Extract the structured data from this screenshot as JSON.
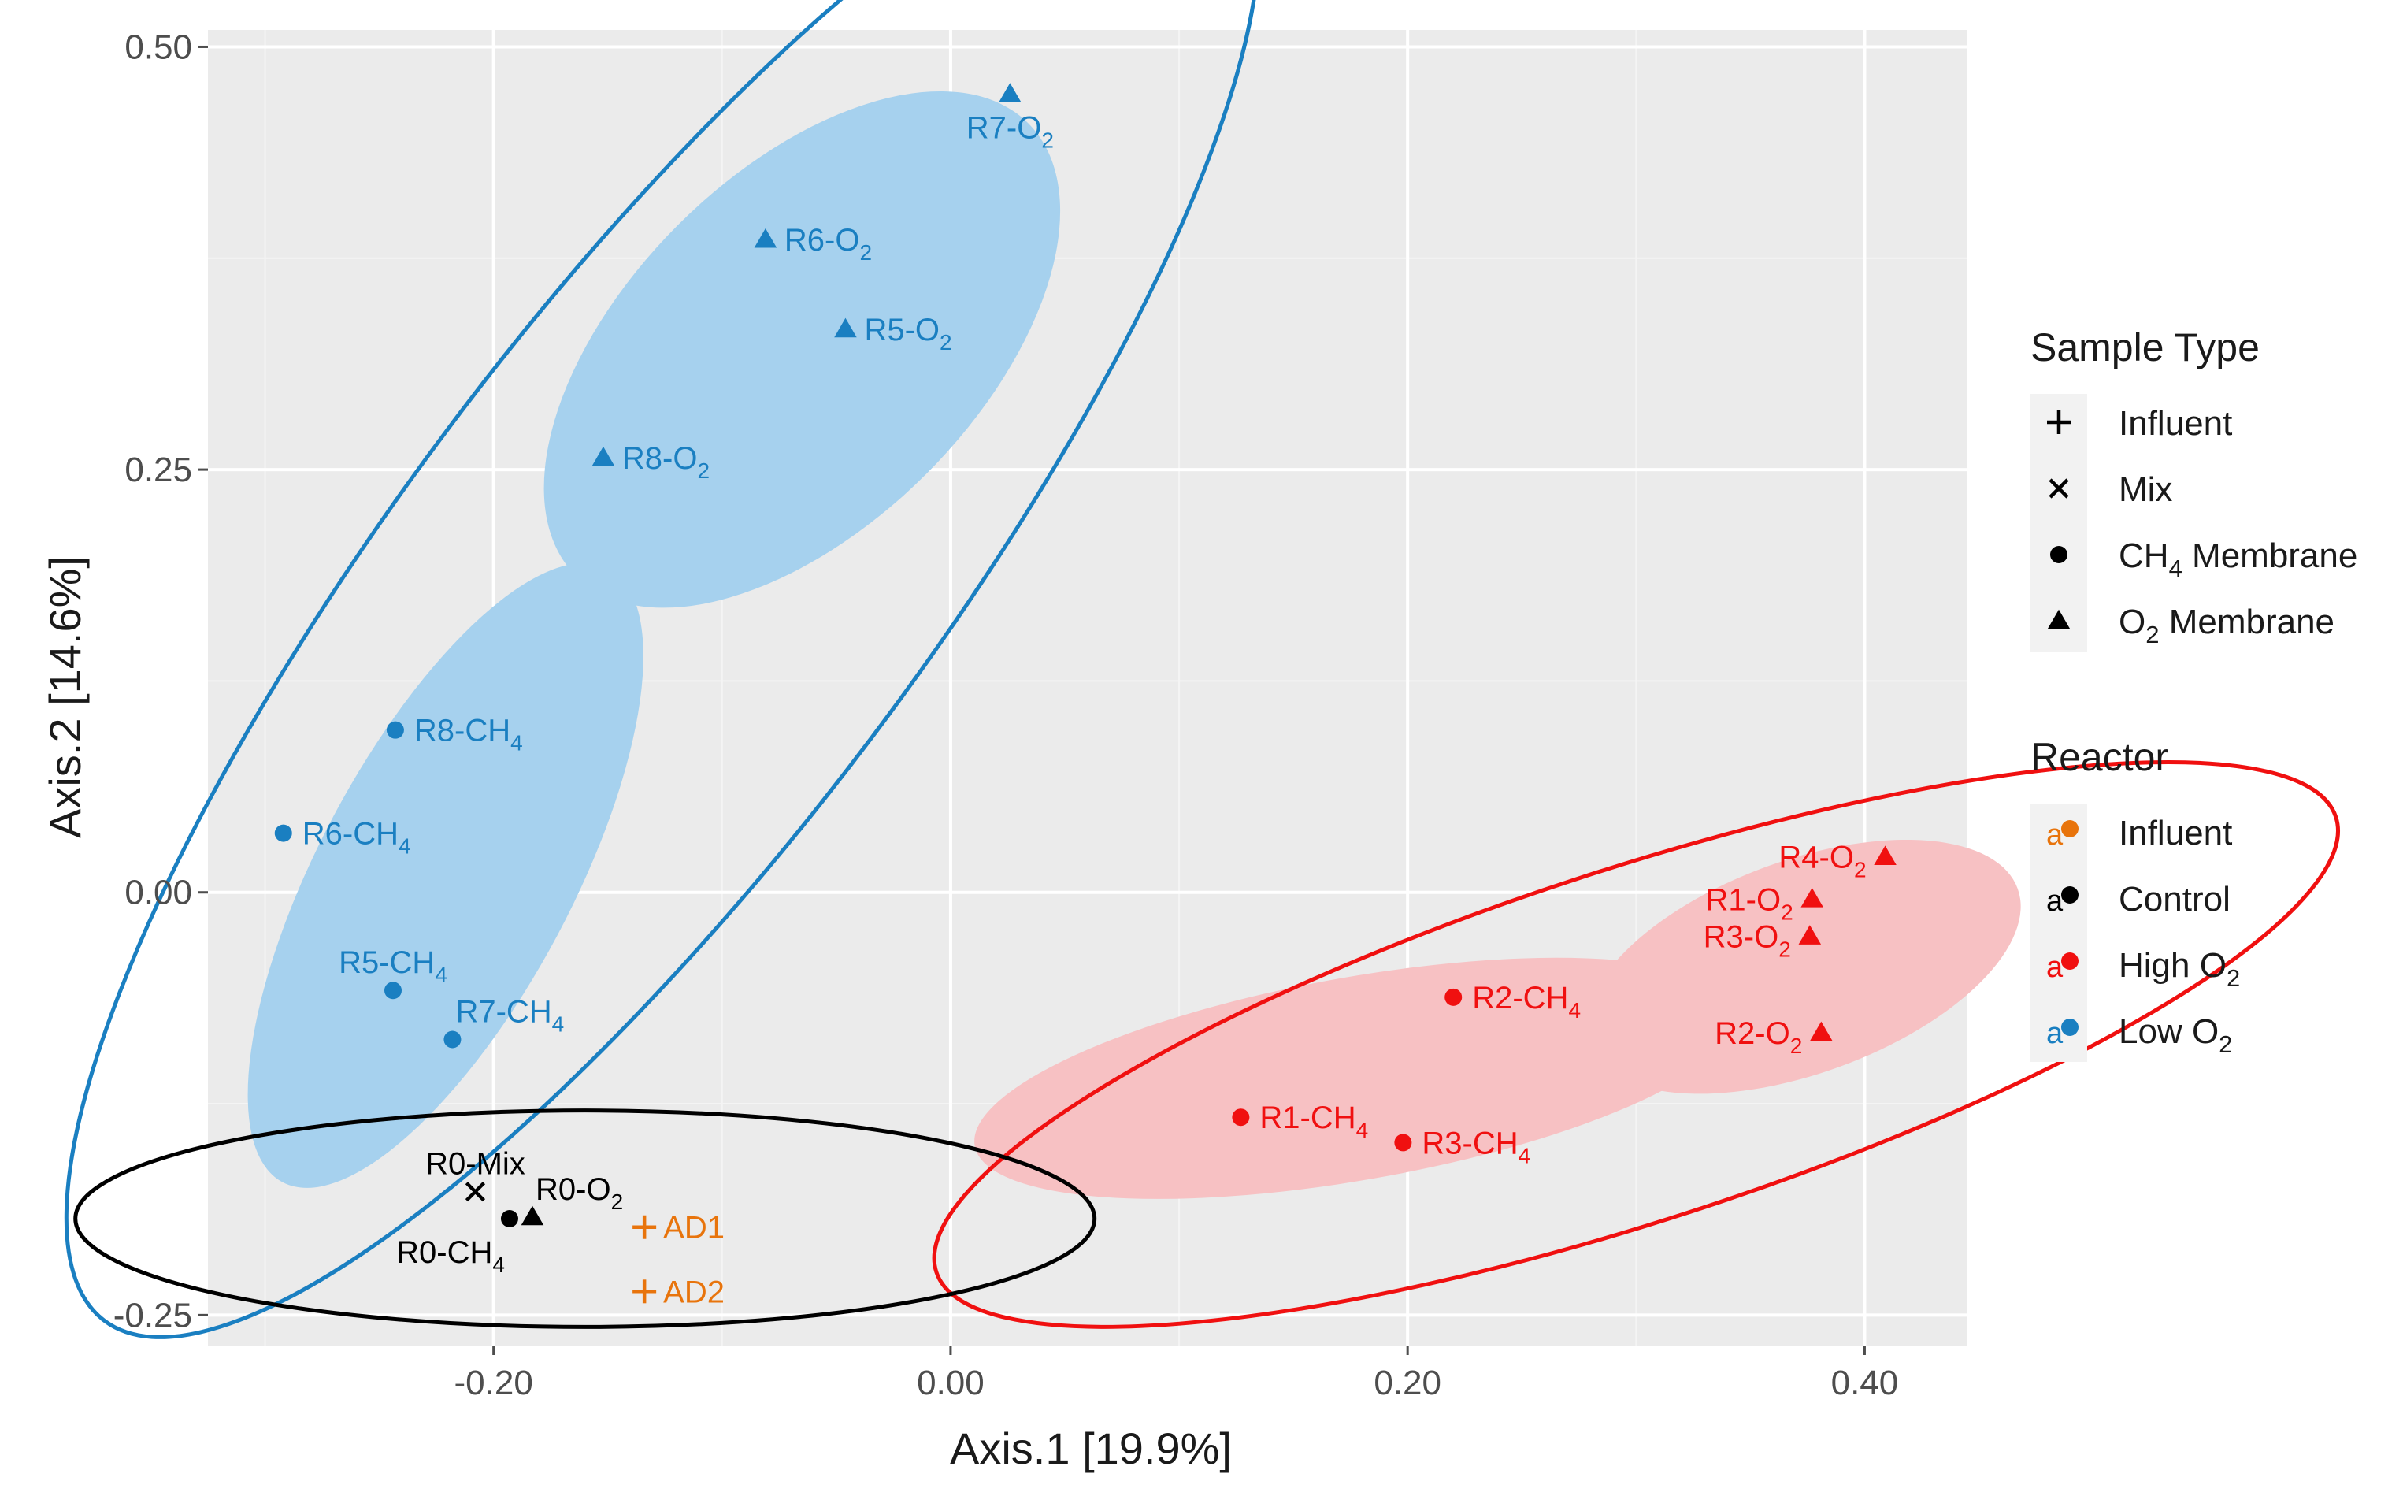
{
  "chart_data": {
    "type": "scatter",
    "title": "",
    "xlabel": "Axis.1  [19.9%]",
    "ylabel": "Axis.2  [14.6%]",
    "xlim": [
      -0.325,
      0.445
    ],
    "ylim": [
      -0.268,
      0.51
    ],
    "x_ticks": [
      -0.2,
      0.0,
      0.2,
      0.4
    ],
    "x_tick_labels": [
      "-0.20",
      "0.00",
      "0.20",
      "0.40"
    ],
    "y_ticks": [
      -0.25,
      0.0,
      0.25,
      0.5
    ],
    "y_tick_labels": [
      "-0.25",
      "0.00",
      "0.25",
      "0.50"
    ],
    "grid": true,
    "colors": {
      "influent": "#E8740C",
      "control": "#000000",
      "high_o2": "#F01010",
      "low_o2": "#1A7FC1",
      "low_o2_fill": "#A6D1EE",
      "high_o2_fill": "#F7C1C3",
      "panel": "#EBEBEB",
      "grid_major": "#FFFFFF",
      "grid_minor": "#F4F4F4",
      "text": "#1A1A1A",
      "tick": "#4D4D4D"
    },
    "points": [
      {
        "id": "R7-O2",
        "base": "R7-O",
        "sub": "2",
        "reactor": "low_o2",
        "shape": "triangle",
        "x": 0.026,
        "y": 0.472,
        "label_pos": "below"
      },
      {
        "id": "R6-O2",
        "base": "R6-O",
        "sub": "2",
        "reactor": "low_o2",
        "shape": "triangle",
        "x": -0.081,
        "y": 0.386,
        "label_pos": "right"
      },
      {
        "id": "R5-O2",
        "base": "R5-O",
        "sub": "2",
        "reactor": "low_o2",
        "shape": "triangle",
        "x": -0.046,
        "y": 0.333,
        "label_pos": "right"
      },
      {
        "id": "R8-O2",
        "base": "R8-O",
        "sub": "2",
        "reactor": "low_o2",
        "shape": "triangle",
        "x": -0.152,
        "y": 0.257,
        "label_pos": "right"
      },
      {
        "id": "R8-CH4",
        "base": "R8-CH",
        "sub": "4",
        "reactor": "low_o2",
        "shape": "circle",
        "x": -0.243,
        "y": 0.096,
        "label_pos": "right"
      },
      {
        "id": "R6-CH4",
        "base": "R6-CH",
        "sub": "4",
        "reactor": "low_o2",
        "shape": "circle",
        "x": -0.292,
        "y": 0.035,
        "label_pos": "right"
      },
      {
        "id": "R5-CH4",
        "base": "R5-CH",
        "sub": "4",
        "reactor": "low_o2",
        "shape": "circle",
        "x": -0.244,
        "y": -0.058,
        "label_pos": "above"
      },
      {
        "id": "R7-CH4",
        "base": "R7-CH",
        "sub": "4",
        "reactor": "low_o2",
        "shape": "circle",
        "x": -0.218,
        "y": -0.087,
        "label_pos": "above-right"
      },
      {
        "id": "R4-O2",
        "base": "R4-O",
        "sub": "2",
        "reactor": "high_o2",
        "shape": "triangle",
        "x": 0.409,
        "y": 0.021,
        "label_pos": "left"
      },
      {
        "id": "R1-O2",
        "base": "R1-O",
        "sub": "2",
        "reactor": "high_o2",
        "shape": "triangle",
        "x": 0.377,
        "y": -0.004,
        "label_pos": "left"
      },
      {
        "id": "R3-O2",
        "base": "R3-O",
        "sub": "2",
        "reactor": "high_o2",
        "shape": "triangle",
        "x": 0.376,
        "y": -0.026,
        "label_pos": "left"
      },
      {
        "id": "R2-O2",
        "base": "R2-O",
        "sub": "2",
        "reactor": "high_o2",
        "shape": "triangle",
        "x": 0.381,
        "y": -0.083,
        "label_pos": "left"
      },
      {
        "id": "R2-CH4",
        "base": "R2-CH",
        "sub": "4",
        "reactor": "high_o2",
        "shape": "circle",
        "x": 0.22,
        "y": -0.062,
        "label_pos": "right"
      },
      {
        "id": "R1-CH4",
        "base": "R1-CH",
        "sub": "4",
        "reactor": "high_o2",
        "shape": "circle",
        "x": 0.127,
        "y": -0.133,
        "label_pos": "right"
      },
      {
        "id": "R3-CH4",
        "base": "R3-CH",
        "sub": "4",
        "reactor": "high_o2",
        "shape": "circle",
        "x": 0.198,
        "y": -0.148,
        "label_pos": "right"
      },
      {
        "id": "R0-Mix",
        "base": "R0-Mix",
        "sub": "",
        "reactor": "control",
        "shape": "cross",
        "x": -0.208,
        "y": -0.177,
        "label_pos": "above"
      },
      {
        "id": "R0-O2",
        "base": "R0-O",
        "sub": "2",
        "reactor": "control",
        "shape": "triangle",
        "x": -0.183,
        "y": -0.192,
        "label_pos": "above-right"
      },
      {
        "id": "R0-CH4",
        "base": "R0-CH",
        "sub": "4",
        "reactor": "control",
        "shape": "circle",
        "x": -0.193,
        "y": -0.193,
        "label_pos": "below-left"
      },
      {
        "id": "AD1",
        "base": "AD1",
        "sub": "",
        "reactor": "influent",
        "shape": "plus",
        "x": -0.134,
        "y": -0.198,
        "label_pos": "right"
      },
      {
        "id": "AD2",
        "base": "AD2",
        "sub": "",
        "reactor": "influent",
        "shape": "plus",
        "x": -0.134,
        "y": -0.236,
        "label_pos": "right"
      }
    ],
    "ellipses": [
      {
        "group": "low_o2_O2",
        "kind": "filled",
        "color": "low_o2_fill",
        "cx": -0.065,
        "cy": 0.321,
        "rx": 0.14,
        "ry": 0.104,
        "angle_deg": -45
      },
      {
        "group": "low_o2_CH4",
        "kind": "filled",
        "color": "low_o2_fill",
        "cx": -0.221,
        "cy": 0.01,
        "rx": 0.152,
        "ry": 0.075,
        "angle_deg": -62
      },
      {
        "group": "low_o2",
        "kind": "outline",
        "color": "low_o2",
        "cx": -0.126,
        "cy": 0.185,
        "rx": 0.406,
        "ry": 0.155,
        "angle_deg": -53
      },
      {
        "group": "high_o2_CH4",
        "kind": "filled",
        "color": "high_o2_fill",
        "cx": 0.178,
        "cy": -0.11,
        "rx": 0.17,
        "ry": 0.06,
        "angle_deg": -10
      },
      {
        "group": "high_o2_O2",
        "kind": "filled",
        "color": "high_o2_fill",
        "cx": 0.373,
        "cy": -0.044,
        "rx": 0.1,
        "ry": 0.063,
        "angle_deg": -20
      },
      {
        "group": "high_o2",
        "kind": "outline",
        "color": "high_o2",
        "cx": 0.3,
        "cy": -0.09,
        "rx": 0.322,
        "ry": 0.104,
        "angle_deg": -18
      },
      {
        "group": "control_influent",
        "kind": "outline",
        "color": "control",
        "cx": -0.16,
        "cy": -0.193,
        "rx": 0.223,
        "ry": 0.064,
        "angle_deg": 0
      }
    ]
  },
  "legend": {
    "sample_type": {
      "title": "Sample Type",
      "items": [
        {
          "shape": "plus",
          "base": "Influent",
          "sub": "",
          "tail": ""
        },
        {
          "shape": "cross",
          "base": "Mix",
          "sub": "",
          "tail": ""
        },
        {
          "shape": "circle",
          "base": "CH",
          "sub": "4",
          "tail": " Membrane"
        },
        {
          "shape": "triangle",
          "base": "O",
          "sub": "2",
          "tail": " Membrane"
        }
      ]
    },
    "reactor": {
      "title": "Reactor",
      "items": [
        {
          "color_key": "influent",
          "base": "Influent",
          "sub": ""
        },
        {
          "color_key": "control",
          "base": "Control",
          "sub": ""
        },
        {
          "color_key": "high_o2",
          "base": "High O",
          "sub": "2"
        },
        {
          "color_key": "low_o2",
          "base": "Low O",
          "sub": "2"
        }
      ],
      "key_glyph": "a"
    }
  }
}
